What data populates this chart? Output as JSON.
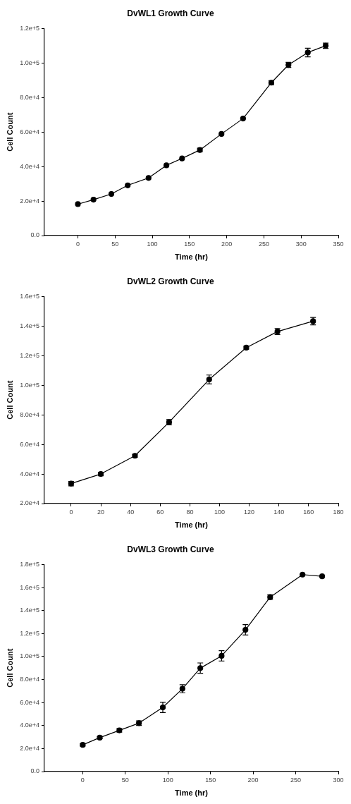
{
  "chart_data": [
    {
      "type": "line",
      "title": "DvWL1 Growth Curve",
      "xlabel": "Time (hr)",
      "ylabel": "Cell Count",
      "color": "#000000",
      "marker": "circle",
      "line_style": "solid",
      "grid": false,
      "legend": false,
      "x": [
        0,
        21,
        45,
        67,
        95,
        119,
        140,
        164,
        193,
        222,
        260,
        283,
        309,
        333
      ],
      "values": [
        18200,
        20800,
        24100,
        29100,
        33400,
        40700,
        44700,
        49600,
        58900,
        67800,
        88600,
        98900,
        106100,
        110000
      ],
      "errors": [
        null,
        null,
        null,
        null,
        null,
        null,
        null,
        1000,
        null,
        null,
        1200,
        1500,
        2500,
        1500
      ],
      "xlim": [
        -45,
        350
      ],
      "xticks": [
        0,
        50,
        100,
        150,
        200,
        250,
        300,
        350
      ],
      "ylim": [
        0,
        120000
      ],
      "yticks": [
        {
          "value": 0,
          "label": "0.0"
        },
        {
          "value": 20000,
          "label": "2.0e+4"
        },
        {
          "value": 40000,
          "label": "4.0e+4"
        },
        {
          "value": 60000,
          "label": "6.0e+4"
        },
        {
          "value": 80000,
          "label": "8.0e+4"
        },
        {
          "value": 100000,
          "label": "1.0e+5"
        },
        {
          "value": 120000,
          "label": "1.2e+5"
        }
      ]
    },
    {
      "type": "line",
      "title": "DvWL2 Growth Curve",
      "xlabel": "Time (hr)",
      "ylabel": "Cell Count",
      "color": "#000000",
      "marker": "circle",
      "line_style": "solid",
      "grid": false,
      "legend": false,
      "x": [
        0,
        20,
        43,
        66,
        93,
        118,
        139,
        163
      ],
      "values": [
        33500,
        40000,
        52300,
        75000,
        103900,
        125400,
        136300,
        143300
      ],
      "errors": [
        1500,
        1200,
        1000,
        1800,
        3000,
        1000,
        2000,
        2500
      ],
      "xlim": [
        -18,
        180
      ],
      "xticks": [
        0,
        20,
        40,
        60,
        80,
        100,
        120,
        140,
        160,
        180
      ],
      "ylim": [
        20000,
        160000
      ],
      "yticks": [
        {
          "value": 20000,
          "label": "2.0e+4"
        },
        {
          "value": 40000,
          "label": "4.0e+4"
        },
        {
          "value": 60000,
          "label": "6.0e+4"
        },
        {
          "value": 80000,
          "label": "8.0e+4"
        },
        {
          "value": 100000,
          "label": "1.0e+5"
        },
        {
          "value": 120000,
          "label": "1.2e+5"
        },
        {
          "value": 140000,
          "label": "1.4e+5"
        },
        {
          "value": 160000,
          "label": "1.6e+5"
        }
      ]
    },
    {
      "type": "line",
      "title": "DvWL3 Growth Curve",
      "xlabel": "Time (hr)",
      "ylabel": "Cell Count",
      "color": "#000000",
      "marker": "circle",
      "line_style": "solid",
      "grid": false,
      "legend": false,
      "x": [
        0,
        20,
        43,
        66,
        94,
        117,
        138,
        163,
        191,
        220,
        258,
        281
      ],
      "values": [
        23200,
        29500,
        35800,
        42100,
        55800,
        72000,
        89900,
        100600,
        123200,
        151600,
        171200,
        169700
      ],
      "errors": [
        1000,
        1000,
        1500,
        2000,
        4500,
        3500,
        4500,
        4500,
        4500,
        2000,
        null,
        null
      ],
      "xlim": [
        -45,
        300
      ],
      "xticks": [
        0,
        50,
        100,
        150,
        200,
        250,
        300
      ],
      "ylim": [
        0,
        180000
      ],
      "yticks": [
        {
          "value": 0,
          "label": "0.0"
        },
        {
          "value": 20000,
          "label": "2.0e+4"
        },
        {
          "value": 40000,
          "label": "4.0e+4"
        },
        {
          "value": 60000,
          "label": "6.0e+4"
        },
        {
          "value": 80000,
          "label": "8.0e+4"
        },
        {
          "value": 100000,
          "label": "1.0e+5"
        },
        {
          "value": 120000,
          "label": "1.2e+5"
        },
        {
          "value": 140000,
          "label": "1.4e+5"
        },
        {
          "value": 160000,
          "label": "1.6e+5"
        },
        {
          "value": 180000,
          "label": "1.8e+5"
        }
      ]
    }
  ]
}
